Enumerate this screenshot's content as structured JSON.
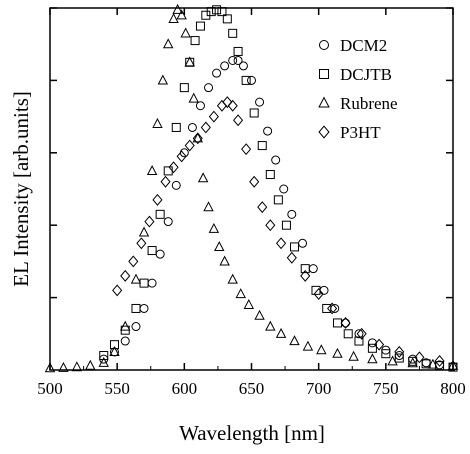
{
  "chart_data": {
    "type": "scatter",
    "title": "",
    "xlabel": "Wavelength [nm]",
    "ylabel": "EL Intensity [arb.units]",
    "xlim": [
      500,
      800
    ],
    "ylim": [
      0,
      1.0
    ],
    "xticks": [
      "500",
      "550",
      "600",
      "650",
      "700",
      "750",
      "800"
    ],
    "yticks_labeled": false,
    "grid": false,
    "legend_position": "top-right",
    "marker_size": 4,
    "series": [
      {
        "name": "DCM2",
        "marker": "circle",
        "x": [
          540,
          548,
          556,
          564,
          570,
          576,
          582,
          588,
          594,
          600,
          606,
          612,
          618,
          624,
          630,
          636,
          640,
          644,
          650,
          656,
          662,
          668,
          674,
          680,
          688,
          696,
          704,
          712,
          720,
          730,
          740,
          750,
          760,
          770,
          780,
          790,
          800
        ],
        "y": [
          0.03,
          0.05,
          0.08,
          0.12,
          0.17,
          0.24,
          0.32,
          0.41,
          0.51,
          0.6,
          0.67,
          0.73,
          0.78,
          0.82,
          0.84,
          0.855,
          0.855,
          0.84,
          0.8,
          0.74,
          0.66,
          0.58,
          0.5,
          0.43,
          0.35,
          0.28,
          0.22,
          0.17,
          0.13,
          0.1,
          0.075,
          0.055,
          0.04,
          0.03,
          0.02,
          0.014,
          0.01
        ]
      },
      {
        "name": "DCJTB",
        "marker": "square",
        "x": [
          540,
          548,
          556,
          564,
          570,
          576,
          582,
          588,
          594,
          600,
          604,
          608,
          612,
          616,
          620,
          624,
          628,
          632,
          636,
          640,
          646,
          652,
          658,
          664,
          670,
          676,
          682,
          690,
          698,
          706,
          714,
          722,
          730,
          740,
          750,
          760,
          770,
          780,
          790,
          800
        ],
        "y": [
          0.04,
          0.07,
          0.11,
          0.17,
          0.24,
          0.33,
          0.43,
          0.55,
          0.67,
          0.78,
          0.85,
          0.91,
          0.95,
          0.98,
          0.99,
          0.995,
          0.99,
          0.97,
          0.93,
          0.88,
          0.8,
          0.71,
          0.62,
          0.54,
          0.47,
          0.4,
          0.34,
          0.28,
          0.22,
          0.17,
          0.13,
          0.1,
          0.08,
          0.06,
          0.045,
          0.033,
          0.024,
          0.017,
          0.012,
          0.008
        ]
      },
      {
        "name": "Rubrene",
        "marker": "triangle",
        "x": [
          500,
          510,
          520,
          530,
          540,
          548,
          556,
          564,
          570,
          576,
          580,
          584,
          588,
          592,
          595,
          598,
          601,
          604,
          607,
          610,
          614,
          618,
          622,
          626,
          630,
          636,
          642,
          648,
          656,
          664,
          672,
          682,
          692,
          702,
          714,
          726,
          740,
          755,
          770,
          785,
          800
        ],
        "y": [
          0.005,
          0.006,
          0.008,
          0.012,
          0.02,
          0.05,
          0.12,
          0.25,
          0.38,
          0.55,
          0.68,
          0.8,
          0.9,
          0.97,
          0.995,
          0.98,
          0.93,
          0.85,
          0.75,
          0.64,
          0.53,
          0.45,
          0.39,
          0.34,
          0.3,
          0.25,
          0.21,
          0.18,
          0.15,
          0.12,
          0.1,
          0.08,
          0.065,
          0.055,
          0.045,
          0.037,
          0.03,
          0.024,
          0.019,
          0.015,
          0.012
        ]
      },
      {
        "name": "P3HT",
        "marker": "diamond",
        "x": [
          550,
          556,
          562,
          568,
          574,
          580,
          586,
          592,
          598,
          604,
          610,
          616,
          622,
          628,
          632,
          636,
          640,
          646,
          652,
          658,
          664,
          672,
          680,
          690,
          700,
          710,
          720,
          732,
          745,
          760,
          775,
          790
        ],
        "y": [
          0.22,
          0.26,
          0.3,
          0.35,
          0.41,
          0.47,
          0.52,
          0.56,
          0.59,
          0.62,
          0.64,
          0.67,
          0.7,
          0.73,
          0.74,
          0.73,
          0.69,
          0.61,
          0.52,
          0.45,
          0.4,
          0.35,
          0.31,
          0.26,
          0.21,
          0.17,
          0.13,
          0.1,
          0.07,
          0.05,
          0.035,
          0.025
        ]
      }
    ]
  }
}
